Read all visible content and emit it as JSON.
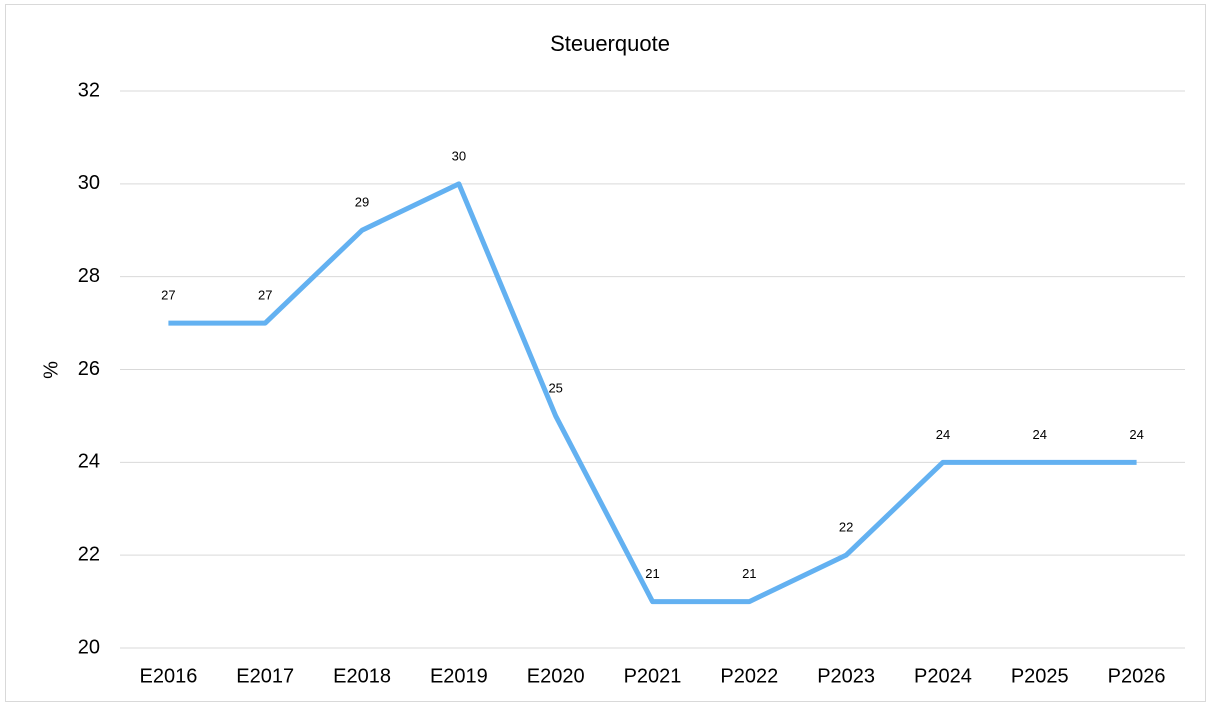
{
  "chart_data": {
    "type": "line",
    "title": "Steuerquote",
    "y_label": "%",
    "categories": [
      "E2016",
      "E2017",
      "E2018",
      "E2019",
      "E2020",
      "P2021",
      "P2022",
      "P2023",
      "P2024",
      "P2025",
      "P2026"
    ],
    "series": [
      {
        "name": "Steuerquote",
        "color": "#63b1f1",
        "values": [
          27,
          27,
          29,
          30,
          25,
          21,
          21,
          22,
          24,
          24,
          24
        ]
      }
    ],
    "ylim": [
      20,
      32
    ],
    "yticks": [
      20,
      22,
      24,
      26,
      28,
      30,
      32
    ],
    "grid": true,
    "data_labels": true
  }
}
